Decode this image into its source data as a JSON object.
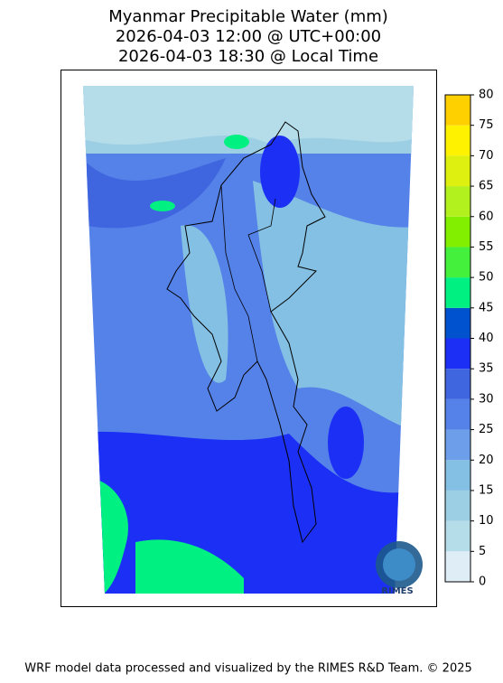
{
  "title": [
    "Myanmar Precipitable Water (mm)",
    "2026-04-03 12:00 @ UTC+00:00",
    "2026-04-03 18:30 @ Local Time"
  ],
  "colorbar": {
    "ticks": [
      0,
      5,
      10,
      15,
      20,
      25,
      30,
      35,
      40,
      45,
      50,
      55,
      60,
      65,
      70,
      75,
      80
    ],
    "colors": [
      "#deedf6",
      "#b5dce9",
      "#9dcfe4",
      "#84c0e3",
      "#6d9ee9",
      "#5582e9",
      "#3f66df",
      "#1c2ff4",
      "#0052cf",
      "#00f082",
      "#44f03c",
      "#82ef00",
      "#b2f01e",
      "#ddf00f",
      "#fff200",
      "#ffd000"
    ]
  },
  "logo": "RIMES",
  "footer": "WRF model data processed and visualized by the RIMES R&D Team. © 2025"
}
